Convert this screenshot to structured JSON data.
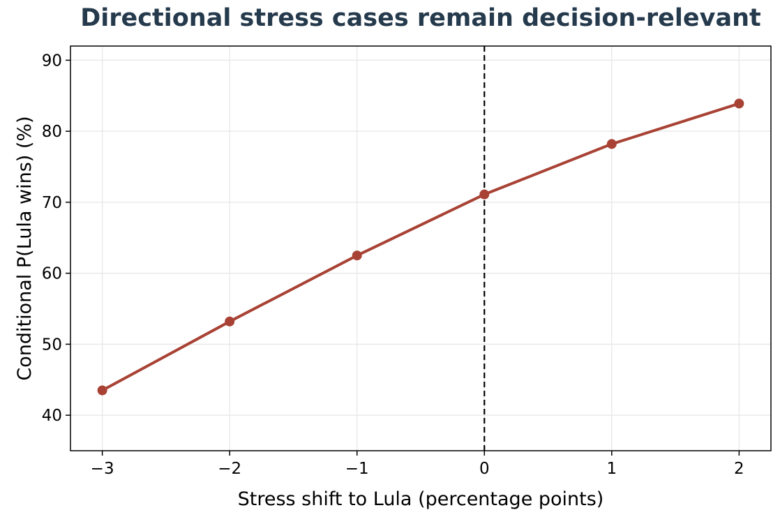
{
  "chart_data": {
    "type": "line",
    "title": "Directional stress cases remain decision-relevant",
    "xlabel": "Stress shift to Lula (percentage points)",
    "ylabel": "Conditional P(Lula wins) (%)",
    "x": [
      -3,
      -2,
      -1,
      0,
      1,
      2
    ],
    "series": [
      {
        "values": [
          43.5,
          53.2,
          62.5,
          71.1,
          78.2,
          83.9
        ],
        "color": "#a84234"
      }
    ],
    "xlim": [
      -3.25,
      2.25
    ],
    "ylim": [
      35,
      92
    ],
    "xticks": [
      -3,
      -2,
      -1,
      0,
      1,
      2
    ],
    "xtick_labels": [
      "−3",
      "−2",
      "−1",
      "0",
      "1",
      "2"
    ],
    "yticks": [
      40,
      50,
      60,
      70,
      80,
      90
    ],
    "ytick_labels": [
      "40",
      "50",
      "60",
      "70",
      "80",
      "90"
    ],
    "reference_line": {
      "orientation": "vertical",
      "x": 0,
      "style": "dashed",
      "color": "#000000"
    },
    "grid": true,
    "title_color": "#253a4c",
    "grid_color": "#e6e6e6"
  }
}
